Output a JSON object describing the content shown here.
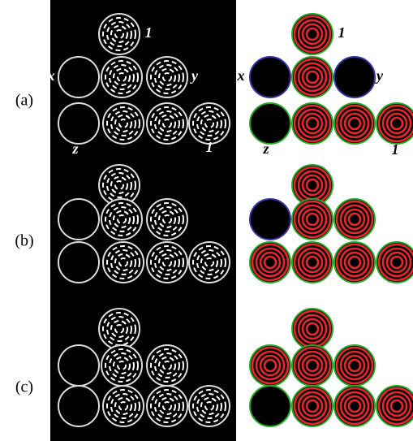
{
  "rows": [
    {
      "label": "(a)"
    },
    {
      "label": "(b)"
    },
    {
      "label": "(c)"
    }
  ],
  "annotations": {
    "left": {
      "top": "1",
      "x": "x",
      "y": "y",
      "z": "z",
      "right": "1"
    },
    "right": {
      "top": "1",
      "x": "x",
      "y": "y",
      "z": "z",
      "right": "1"
    }
  }
}
